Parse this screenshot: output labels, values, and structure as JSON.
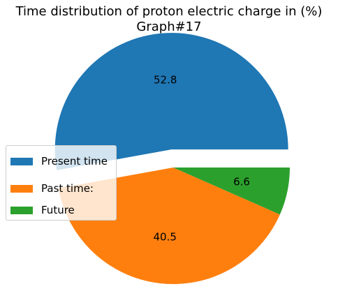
{
  "chart_data": {
    "type": "pie",
    "title": "Time distribution of proton electric charge in (%)",
    "subtitle": "Graph#17",
    "slices": [
      {
        "label": "Present time",
        "value": 52.8,
        "display": "52.8",
        "color": "#1f77b4",
        "exploded": true
      },
      {
        "label": "Past time:",
        "value": 40.5,
        "display": "40.5",
        "color": "#ff7f0e",
        "exploded": false
      },
      {
        "label": "Future",
        "value": 6.6,
        "display": "6.6",
        "color": "#2ca02c",
        "exploded": false
      }
    ],
    "start_angle_deg": 0,
    "direction": "counterclockwise",
    "legend_position": "center-left"
  }
}
